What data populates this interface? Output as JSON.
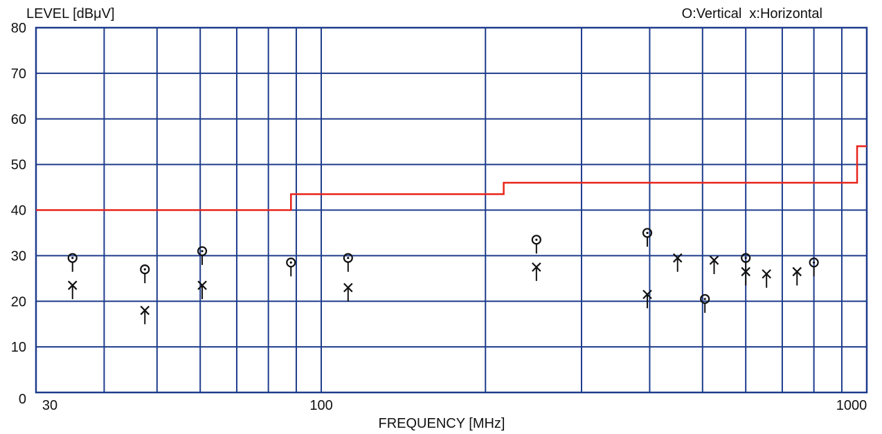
{
  "chart_data": {
    "type": "scatter",
    "ylabel": "LEVEL [dBμV]",
    "xlabel": "FREQUENCY [MHz]",
    "legend_text": "O:Vertical  x:Horizontal",
    "legend_position": "top-right",
    "x_scale": "log",
    "xlim": [
      30,
      1000
    ],
    "ylim": [
      0,
      80
    ],
    "grid": true,
    "x_tick_labels": [
      {
        "value": 30,
        "label": "30"
      },
      {
        "value": 100,
        "label": "100"
      },
      {
        "value": 1000,
        "label": "1000"
      }
    ],
    "y_ticks": [
      0,
      10,
      20,
      30,
      40,
      50,
      60,
      70,
      80
    ],
    "x_gridlines": [
      30,
      40,
      50,
      60,
      70,
      80,
      90,
      100,
      200,
      300,
      400,
      500,
      600,
      700,
      800,
      900,
      1000
    ],
    "limit_line": {
      "steps": [
        {
          "x_start": 30,
          "x_end": 88,
          "y": 40
        },
        {
          "x_start": 88,
          "x_end": 216,
          "y": 43.5
        },
        {
          "x_start": 216,
          "x_end": 960,
          "y": 46
        },
        {
          "x_start": 960,
          "x_end": 1000,
          "y": 54
        }
      ]
    },
    "series": [
      {
        "marker": "circle",
        "points": [
          {
            "x": 35,
            "y": 29.5
          },
          {
            "x": 47.5,
            "y": 27
          },
          {
            "x": 60.5,
            "y": 31
          },
          {
            "x": 88,
            "y": 28.5
          },
          {
            "x": 112,
            "y": 29.5
          },
          {
            "x": 248,
            "y": 33.5
          },
          {
            "x": 396,
            "y": 35
          },
          {
            "x": 505,
            "y": 20.5
          },
          {
            "x": 600,
            "y": 29.5
          },
          {
            "x": 800,
            "y": 28.5
          }
        ]
      },
      {
        "marker": "cross",
        "points": [
          {
            "x": 35,
            "y": 23.5
          },
          {
            "x": 47.5,
            "y": 18
          },
          {
            "x": 60.5,
            "y": 23.5
          },
          {
            "x": 112,
            "y": 23
          },
          {
            "x": 248,
            "y": 27.5
          },
          {
            "x": 396,
            "y": 21.5
          },
          {
            "x": 450,
            "y": 29.5
          },
          {
            "x": 525,
            "y": 29
          },
          {
            "x": 600,
            "y": 26.5
          },
          {
            "x": 655,
            "y": 26
          },
          {
            "x": 745,
            "y": 26.5
          }
        ]
      }
    ]
  },
  "colors": {
    "grid": "#1e3c8c",
    "limit": "#e8231a",
    "marker": "#111111"
  }
}
